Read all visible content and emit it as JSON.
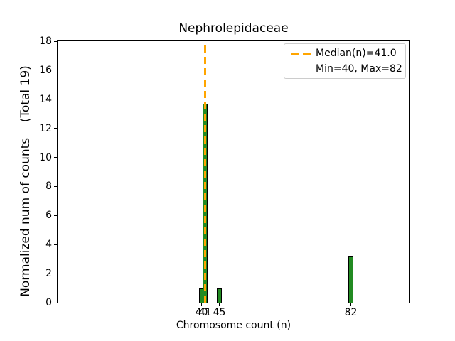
{
  "colors": {
    "bar_fill": "#228B22",
    "bar_edge": "#000000",
    "median_line": "#FFA500",
    "spine": "#000000",
    "legend_border": "#cccccc",
    "background": "#ffffff",
    "text": "#000000"
  },
  "chart_data": {
    "type": "bar",
    "title": "Nephrolepidaceae",
    "xlabel": "Chromosome count (n)",
    "ylabel": "Normalized num of counts    (Total 19)",
    "total": 19,
    "x": [
      40,
      41,
      45,
      82
    ],
    "values": [
      1.0,
      13.7,
      1.0,
      3.2
    ],
    "xticks": [
      40,
      41,
      45,
      82
    ],
    "yticks": [
      0,
      2,
      4,
      6,
      8,
      10,
      12,
      14,
      16,
      18
    ],
    "xlim": [
      -0.5,
      98.5
    ],
    "ylim": [
      0,
      18
    ],
    "grid": false,
    "median_line": {
      "x": 41.0,
      "style": "dashed",
      "color": "#FFA500"
    },
    "stats": {
      "median": 41.0,
      "min": 40,
      "max": 82
    },
    "legend": [
      "Median(n)=41.0",
      "Min=40, Max=82"
    ],
    "legend_position": "upper right"
  }
}
